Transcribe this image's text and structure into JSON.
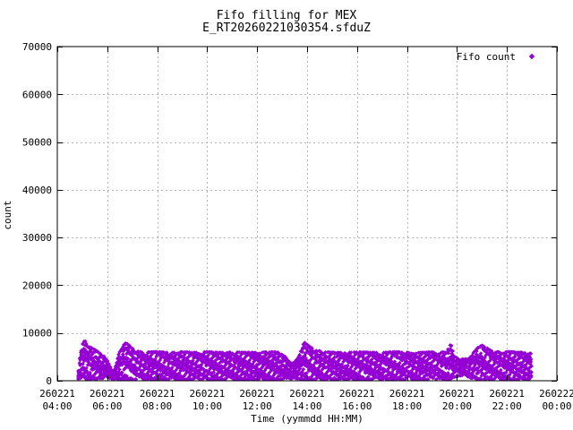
{
  "title": "Fifo filling for MEX",
  "subtitle": "E_RT20260221030354.sfduZ",
  "legend": {
    "entries": [
      {
        "label": "Fifo count",
        "marker": "diamond",
        "color": "#9400d3"
      }
    ],
    "position": "top-right-inside"
  },
  "colors": {
    "series": "#9400d3",
    "grid": "#b3b3b3",
    "axis": "#000000",
    "background": "#ffffff"
  },
  "axes": {
    "x": {
      "label": "Time (yymmdd HH:MM)",
      "ticks": [
        {
          "date": "260221",
          "time": "04:00",
          "t": 4
        },
        {
          "date": "260221",
          "time": "06:00",
          "t": 6
        },
        {
          "date": "260221",
          "time": "08:00",
          "t": 8
        },
        {
          "date": "260221",
          "time": "10:00",
          "t": 10
        },
        {
          "date": "260221",
          "time": "12:00",
          "t": 12
        },
        {
          "date": "260221",
          "time": "14:00",
          "t": 14
        },
        {
          "date": "260221",
          "time": "16:00",
          "t": 16
        },
        {
          "date": "260221",
          "time": "18:00",
          "t": 18
        },
        {
          "date": "260221",
          "time": "20:00",
          "t": 20
        },
        {
          "date": "260221",
          "time": "22:00",
          "t": 22
        },
        {
          "date": "260222",
          "time": "00:00",
          "t": 24
        }
      ]
    },
    "y": {
      "label": "count",
      "ticks": [
        {
          "label": "0",
          "v": 0
        },
        {
          "label": "10000",
          "v": 10000
        },
        {
          "label": "20000",
          "v": 20000
        },
        {
          "label": "30000",
          "v": 30000
        },
        {
          "label": "40000",
          "v": 40000
        },
        {
          "label": "50000",
          "v": 50000
        },
        {
          "label": "60000",
          "v": 60000
        },
        {
          "label": "70000",
          "v": 70000
        }
      ]
    }
  },
  "chart_data": {
    "type": "scatter",
    "series_name": "Fifo count",
    "marker": "diamond",
    "title": "Fifo filling for MEX",
    "subtitle": "E_RT20260221030354.sfduZ",
    "xlabel": "Time (yymmdd HH:MM)",
    "ylabel": "count",
    "x_unit": "hours on 260221 (21 Feb 2026), 4 = 04:00, 24 = 260222 00:00",
    "xlim": [
      4,
      24
    ],
    "ylim": [
      0,
      70000
    ],
    "grid": true,
    "legend_position": "top-right",
    "data_extent_note": "dense point cloud between ~04:52 and ~23:00, values mostly 300-6000 with peaks to ~8400",
    "envelope_t_min_max": [
      [
        4.86,
        400,
        2200
      ],
      [
        4.92,
        350,
        5600
      ],
      [
        5.0,
        300,
        7600
      ],
      [
        5.08,
        300,
        8400
      ],
      [
        5.2,
        300,
        7800
      ],
      [
        5.35,
        350,
        7000
      ],
      [
        5.55,
        450,
        6300
      ],
      [
        5.8,
        550,
        5400
      ],
      [
        6.0,
        650,
        4400
      ],
      [
        6.12,
        550,
        3000
      ],
      [
        6.22,
        350,
        1500
      ],
      [
        6.35,
        300,
        3600
      ],
      [
        6.5,
        300,
        6200
      ],
      [
        6.65,
        300,
        7500
      ],
      [
        6.78,
        300,
        7900
      ],
      [
        6.95,
        300,
        6900
      ],
      [
        7.15,
        300,
        6200
      ],
      [
        7.5,
        300,
        5900
      ],
      [
        8.0,
        300,
        6050
      ],
      [
        8.5,
        300,
        5850
      ],
      [
        9.0,
        300,
        6000
      ],
      [
        9.5,
        300,
        5900
      ],
      [
        10.0,
        300,
        6050
      ],
      [
        10.5,
        300,
        5850
      ],
      [
        11.0,
        300,
        6000
      ],
      [
        11.5,
        300,
        5900
      ],
      [
        12.0,
        300,
        5850
      ],
      [
        12.5,
        300,
        6050
      ],
      [
        12.9,
        300,
        5900
      ],
      [
        13.1,
        350,
        5100
      ],
      [
        13.3,
        450,
        4100
      ],
      [
        13.5,
        550,
        3900
      ],
      [
        13.7,
        450,
        5300
      ],
      [
        13.83,
        300,
        7300
      ],
      [
        13.9,
        300,
        8000
      ],
      [
        14.0,
        300,
        7500
      ],
      [
        14.15,
        300,
        6900
      ],
      [
        14.35,
        300,
        6400
      ],
      [
        14.6,
        300,
        6050
      ],
      [
        15.0,
        300,
        5900
      ],
      [
        15.5,
        300,
        5850
      ],
      [
        16.0,
        300,
        6000
      ],
      [
        16.5,
        300,
        5900
      ],
      [
        17.0,
        300,
        5850
      ],
      [
        17.5,
        300,
        6000
      ],
      [
        18.0,
        300,
        5900
      ],
      [
        18.5,
        300,
        5850
      ],
      [
        19.0,
        300,
        6000
      ],
      [
        19.3,
        300,
        5900
      ],
      [
        19.6,
        300,
        6050
      ],
      [
        19.74,
        300,
        7800
      ],
      [
        19.85,
        700,
        5300
      ],
      [
        20.1,
        1100,
        4400
      ],
      [
        20.35,
        900,
        4600
      ],
      [
        20.6,
        550,
        5400
      ],
      [
        20.8,
        350,
        6700
      ],
      [
        21.0,
        300,
        7400
      ],
      [
        21.15,
        300,
        7000
      ],
      [
        21.35,
        300,
        6300
      ],
      [
        21.7,
        300,
        5950
      ],
      [
        22.1,
        300,
        6050
      ],
      [
        22.5,
        300,
        5900
      ],
      [
        22.8,
        300,
        6000
      ],
      [
        23.0,
        300,
        5600
      ]
    ]
  }
}
